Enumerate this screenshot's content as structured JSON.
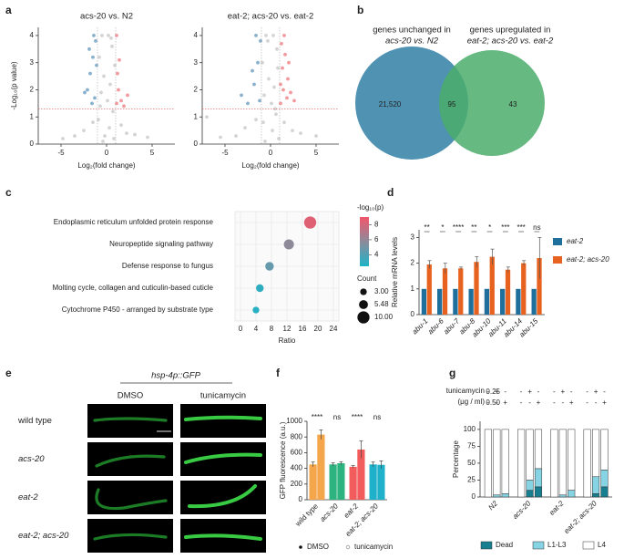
{
  "panel_labels": [
    "a",
    "b",
    "c",
    "d",
    "e",
    "f",
    "g"
  ],
  "chart_data": [
    {
      "type": "scatter",
      "title": "acs-20 vs. N2",
      "xlabel": "Log₂(fold change)",
      "ylabel": "-Log₁₀(p value)",
      "xlim": [
        -7.5,
        7.5
      ],
      "ylim": [
        0,
        4.3
      ],
      "xticks": [
        -5,
        0,
        5
      ],
      "yticks": [
        0,
        1,
        2,
        3,
        4
      ],
      "thresholds": {
        "y": 1.3,
        "x": [
          -1,
          1
        ]
      },
      "series": [
        {
          "color": "#c9c9c9",
          "x": [
            -0.5,
            0.2,
            0.6,
            -0.8,
            0.9,
            -0.3,
            0.4,
            -0.6,
            0.1,
            0.7,
            -0.9,
            0.3,
            -1.5,
            1.6,
            -2.5,
            2.2,
            -3.5,
            3.1,
            -4.8,
            4.5,
            -0.2,
            0.5,
            -0.7,
            0.8,
            -0.4
          ],
          "values": [
            4.0,
            4.0,
            3.6,
            3.2,
            2.9,
            2.5,
            2.2,
            1.9,
            1.6,
            1.2,
            0.9,
            0.6,
            0.8,
            0.7,
            0.5,
            0.4,
            0.3,
            0.35,
            0.2,
            0.25,
            0.3,
            3.9,
            1.4,
            0.2,
            0.1
          ]
        },
        {
          "color": "#6c9cbf",
          "x": [
            -1.2,
            -1.5,
            -1.8,
            -2.1,
            -1.3,
            -1.6,
            -2.4,
            -1.1,
            -1.9,
            -1.4
          ],
          "values": [
            3.8,
            3.2,
            2.6,
            2.0,
            1.7,
            1.5,
            1.9,
            2.9,
            3.5,
            4.0
          ]
        },
        {
          "color": "#ef7f86",
          "x": [
            1.1,
            1.3,
            1.6,
            1.2,
            1.9,
            1.4,
            2.3,
            1.1
          ],
          "values": [
            1.5,
            2.0,
            1.6,
            2.6,
            1.4,
            3.1,
            1.8,
            4.0
          ]
        }
      ]
    },
    {
      "type": "scatter",
      "title": "eat-2; acs-20 vs. eat-2",
      "xlabel": "Log₂(fold change)",
      "xlim": [
        -7.5,
        7.5
      ],
      "ylim": [
        0,
        4.3
      ],
      "xticks": [
        -5,
        0,
        5
      ],
      "yticks": [
        0,
        1,
        2,
        3,
        4
      ],
      "thresholds": {
        "y": 1.3,
        "x": [
          -1,
          1
        ]
      },
      "series": [
        {
          "color": "#c9c9c9",
          "x": [
            -0.5,
            0.3,
            0.7,
            -0.9,
            0.8,
            -0.2,
            0.4,
            -0.7,
            0.1,
            0.6,
            -0.8,
            0.2,
            -1.6,
            1.5,
            -2.8,
            2.4,
            -3.8,
            3.3,
            -5.5,
            5.0,
            -7.0,
            -0.3,
            0.5,
            0.9,
            -0.6
          ],
          "values": [
            4.0,
            4.0,
            3.5,
            3.0,
            2.8,
            2.4,
            2.1,
            1.8,
            1.5,
            1.1,
            0.8,
            0.5,
            0.9,
            0.8,
            0.6,
            0.5,
            0.3,
            0.4,
            0.25,
            0.3,
            1.0,
            3.8,
            1.3,
            0.2,
            0.1
          ]
        },
        {
          "color": "#6c9cbf",
          "x": [
            -1.2,
            -1.8,
            -2.5,
            -1.4,
            -3.2,
            -2.0,
            -1.1,
            -1.6
          ],
          "values": [
            1.6,
            2.2,
            1.5,
            3.0,
            1.8,
            2.7,
            3.8,
            4.0
          ]
        },
        {
          "color": "#ef7f86",
          "x": [
            1.1,
            1.4,
            1.8,
            2.2,
            1.3,
            1.6,
            2.6,
            1.2,
            1.9,
            1.5,
            2.0,
            1.1
          ],
          "values": [
            1.5,
            2.0,
            1.7,
            1.9,
            2.8,
            3.3,
            1.6,
            3.7,
            2.4,
            4.0,
            3.0,
            2.2
          ]
        }
      ]
    },
    {
      "type": "bubble",
      "xlabel": "Ratio",
      "categories": [
        "Endoplasmic reticulum unfolded protein response",
        "Neuropeptide signaling pathway",
        "Defense response to fungus",
        "Molting cycle, collagen and cuticulin-based cuticle",
        "Cytochrome P450 - arranged by substrate type"
      ],
      "values": [
        18,
        12.5,
        7.5,
        5,
        4
      ],
      "neglog10p": [
        8.4,
        5.8,
        4.6,
        3.0,
        2.8
      ],
      "count": [
        10,
        7,
        5,
        4,
        3
      ],
      "xlim": [
        0,
        24
      ],
      "xticks": [
        0,
        4,
        8,
        12,
        16,
        20,
        24
      ],
      "grid": true,
      "color_scale": {
        "label": "-log₁₀(p)",
        "lim": [
          2.5,
          9
        ],
        "ticks": [
          4,
          6,
          8
        ],
        "colors": [
          "#1db3c7",
          "#8c8b9b",
          "#f2566a"
        ]
      },
      "size_label": "Count",
      "size_ticks": [
        {
          "value": 3,
          "label": "3.00"
        },
        5.48,
        {
          "value": 10,
          "label": "10.00"
        }
      ]
    },
    {
      "type": "grouped_bar",
      "ylabel": "Relative mRNA levels",
      "categories": [
        "abu-1",
        "abu-6",
        "abu-7",
        "abu-8",
        "abu-10",
        "abu-11",
        "abu-14",
        "abu-15"
      ],
      "ylim": [
        0,
        3.3
      ],
      "yticks": [
        0,
        1,
        2,
        3
      ],
      "series": [
        {
          "name": "eat-2",
          "color": "#1f6f9c",
          "values": [
            1,
            1,
            1,
            1,
            1,
            1,
            1,
            1
          ]
        },
        {
          "name": "eat-2; acs-20",
          "color": "#e8621f",
          "values": [
            1.95,
            1.8,
            1.8,
            2.05,
            2.25,
            1.75,
            2.0,
            2.2
          ],
          "errors": [
            0.15,
            0.2,
            0.05,
            0.2,
            0.3,
            0.1,
            0.1,
            0.8
          ]
        }
      ],
      "significance": [
        "**",
        "*",
        "****",
        "**",
        "*",
        "***",
        "***",
        "ns"
      ]
    },
    {
      "type": "colored_bar",
      "ylabel": "GFP fluorescence (a.u.)",
      "categories": [
        "wild type",
        "acs-20",
        "eat-2",
        "eat-2; acs-20"
      ],
      "category_colors": [
        "#f5a64a",
        "#2db37f",
        "#f25c5c",
        "#1fb1c9"
      ],
      "ylim": [
        0,
        1000
      ],
      "yticks": [
        0,
        200,
        400,
        600,
        800,
        1000
      ],
      "series": [
        {
          "name": "DMSO",
          "color": "#111111",
          "marker": "dot",
          "values": [
            450,
            450,
            420,
            450
          ],
          "errors": [
            30,
            20,
            15,
            30
          ]
        },
        {
          "name": "tunicamycin",
          "color": "#9a9a9a",
          "marker": "circle",
          "values": [
            830,
            465,
            640,
            445
          ],
          "errors": [
            60,
            20,
            110,
            50
          ]
        }
      ],
      "significance": [
        "****",
        "ns",
        "****",
        "ns"
      ]
    },
    {
      "type": "stacked_bar",
      "ylabel": "Percentage",
      "groups": [
        "N2",
        "acs-20",
        "eat-2",
        "eat-2; acs-20"
      ],
      "condition_label": "tunicamycin",
      "condition_unit": "(μg / ml)",
      "conditions": [
        {
          "label": "0.25",
          "signs": [
            "-",
            "+",
            "-"
          ]
        },
        {
          "label": "0.50",
          "signs": [
            "-",
            "-",
            "+"
          ]
        }
      ],
      "ylim": [
        0,
        112
      ],
      "yticks": [
        0,
        25,
        50,
        75,
        100
      ],
      "series": [
        {
          "name": "Dead",
          "color": "#177f8f",
          "values": [
            [
              0,
              0,
              0
            ],
            [
              0,
              10,
              15
            ],
            [
              0,
              0,
              0
            ],
            [
              0,
              5,
              15
            ]
          ]
        },
        {
          "name": "L1-L3",
          "color": "#85d3e3",
          "values": [
            [
              0,
              3,
              5
            ],
            [
              0,
              15,
              27
            ],
            [
              0,
              3,
              10
            ],
            [
              0,
              25,
              25
            ]
          ]
        },
        {
          "name": "L4",
          "color": "#ffffff",
          "values": [
            [
              100,
              97,
              95
            ],
            [
              100,
              75,
              58
            ],
            [
              100,
              97,
              90
            ],
            [
              100,
              70,
              60
            ]
          ]
        }
      ]
    }
  ],
  "venn": {
    "left": {
      "lines": [
        "genes unchanged in",
        "acs-20 vs. N2"
      ],
      "value": "21,520",
      "color": "#3d86aa"
    },
    "right": {
      "lines": [
        "genes upregulated in",
        "eat-2; acs-20 vs. eat-2"
      ],
      "value": "43",
      "color": "#4aad6b"
    },
    "overlap": "95"
  },
  "micrographs": {
    "reporter": "hsp-4p::GFP",
    "columns": [
      "DMSO",
      "tunicamycin"
    ],
    "rows": [
      "wild type",
      "acs-20",
      "eat-2",
      "eat-2; acs-20"
    ]
  }
}
